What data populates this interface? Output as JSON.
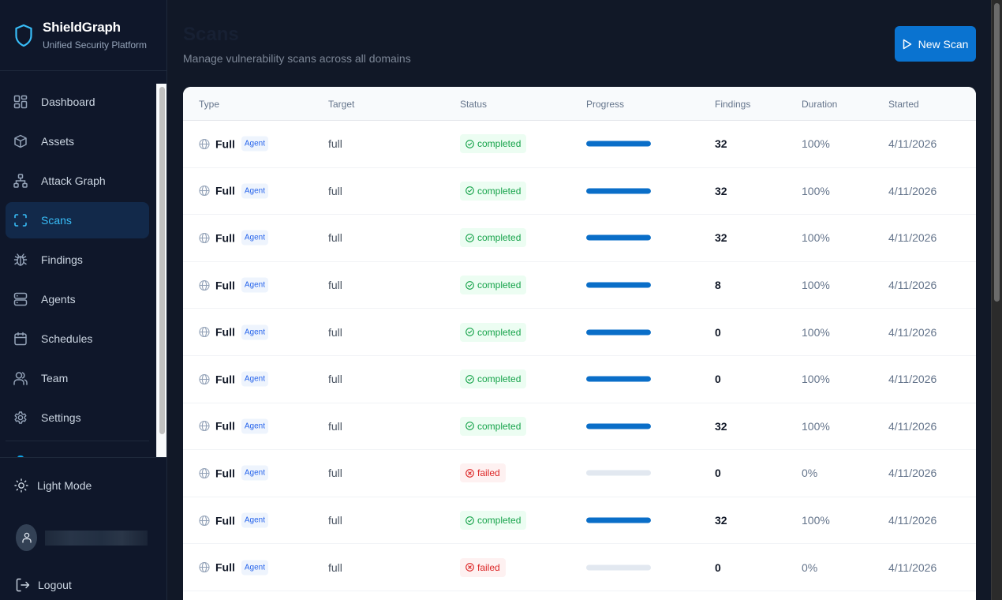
{
  "brand": {
    "title": "ShieldGraph",
    "subtitle": "Unified Security Platform",
    "accent": "#38bdf8"
  },
  "sidebar": {
    "items": [
      {
        "label": "Dashboard",
        "icon": "dashboard-icon",
        "active": false
      },
      {
        "label": "Assets",
        "icon": "box-icon",
        "active": false
      },
      {
        "label": "Attack Graph",
        "icon": "network-icon",
        "active": false
      },
      {
        "label": "Scans",
        "icon": "scan-icon",
        "active": true
      },
      {
        "label": "Findings",
        "icon": "bug-icon",
        "active": false
      },
      {
        "label": "Agents",
        "icon": "server-icon",
        "active": false
      },
      {
        "label": "Schedules",
        "icon": "calendar-icon",
        "active": false
      },
      {
        "label": "Team",
        "icon": "users-icon",
        "active": false
      },
      {
        "label": "Settings",
        "icon": "gear-icon",
        "active": false
      }
    ],
    "theme_toggle": "Light Mode",
    "logout": "Logout"
  },
  "page": {
    "title": "Scans",
    "subtitle": "Manage vulnerability scans across all domains",
    "new_scan_label": "New Scan"
  },
  "table": {
    "columns": [
      "Type",
      "Target",
      "Status",
      "Progress",
      "Findings",
      "Duration",
      "Started"
    ],
    "rows": [
      {
        "type": "Full",
        "badge": "Agent",
        "target": "full",
        "status": "completed",
        "progress": 100,
        "findings": "32",
        "duration": "100%",
        "started": "4/11/2026"
      },
      {
        "type": "Full",
        "badge": "Agent",
        "target": "full",
        "status": "completed",
        "progress": 100,
        "findings": "32",
        "duration": "100%",
        "started": "4/11/2026"
      },
      {
        "type": "Full",
        "badge": "Agent",
        "target": "full",
        "status": "completed",
        "progress": 100,
        "findings": "32",
        "duration": "100%",
        "started": "4/11/2026"
      },
      {
        "type": "Full",
        "badge": "Agent",
        "target": "full",
        "status": "completed",
        "progress": 100,
        "findings": "8",
        "duration": "100%",
        "started": "4/11/2026"
      },
      {
        "type": "Full",
        "badge": "Agent",
        "target": "full",
        "status": "completed",
        "progress": 100,
        "findings": "0",
        "duration": "100%",
        "started": "4/11/2026"
      },
      {
        "type": "Full",
        "badge": "Agent",
        "target": "full",
        "status": "completed",
        "progress": 100,
        "findings": "0",
        "duration": "100%",
        "started": "4/11/2026"
      },
      {
        "type": "Full",
        "badge": "Agent",
        "target": "full",
        "status": "completed",
        "progress": 100,
        "findings": "32",
        "duration": "100%",
        "started": "4/11/2026"
      },
      {
        "type": "Full",
        "badge": "Agent",
        "target": "full",
        "status": "failed",
        "progress": 0,
        "findings": "0",
        "duration": "0%",
        "started": "4/11/2026"
      },
      {
        "type": "Full",
        "badge": "Agent",
        "target": "full",
        "status": "completed",
        "progress": 100,
        "findings": "32",
        "duration": "100%",
        "started": "4/11/2026"
      },
      {
        "type": "Full",
        "badge": "Agent",
        "target": "full",
        "status": "failed",
        "progress": 0,
        "findings": "0",
        "duration": "0%",
        "started": "4/11/2026"
      }
    ]
  },
  "colors": {
    "primary": "#0a73d0",
    "completed": "#16a34a",
    "failed": "#dc2626",
    "sidebar_bg": "#0f172a",
    "main_bg": "#111827"
  }
}
